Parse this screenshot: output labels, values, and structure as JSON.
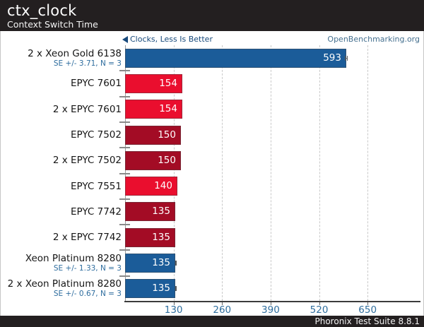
{
  "header": {
    "title": "ctx_clock",
    "subtitle": "Context Switch Time"
  },
  "chart_meta": {
    "better_label": "Clocks, Less Is Better",
    "watermark": "OpenBenchmarking.org"
  },
  "footer": {
    "text": "Phoronix Test Suite 8.8.1"
  },
  "colors": {
    "dark_bg": "#231f20",
    "bar_blue": "#1b5c99",
    "bar_red_bright": "#ea0e2e",
    "bar_red_dark": "#a30c25",
    "better_text": "#17497b",
    "watermark_text": "#45708f",
    "tick_text": "#2e6d9d",
    "grid": "#c9c9c9"
  },
  "chart_data": {
    "type": "bar",
    "orientation": "horizontal",
    "title": "ctx_clock",
    "subtitle": "Context Switch Time",
    "unit": "Clocks",
    "better": "Less Is Better",
    "x_ticks": [
      130,
      260,
      390,
      520,
      650
    ],
    "xlim": [
      0,
      800
    ],
    "grid": "vertical-dashed",
    "legend": "none",
    "rows": [
      {
        "label": "2 x Xeon Gold 6138",
        "sub_label": "SE +/- 3.71, N = 3",
        "se": 3.71,
        "value": 593,
        "color": "#1b5c99"
      },
      {
        "label": "EPYC 7601",
        "sub_label": "",
        "se": 0,
        "value": 154,
        "color": "#ea0e2e"
      },
      {
        "label": "2 x EPYC 7601",
        "sub_label": "",
        "se": 0,
        "value": 154,
        "color": "#ea0e2e"
      },
      {
        "label": "EPYC 7502",
        "sub_label": "",
        "se": 0,
        "value": 150,
        "color": "#a30c25"
      },
      {
        "label": "2 x EPYC 7502",
        "sub_label": "",
        "se": 0,
        "value": 150,
        "color": "#a30c25"
      },
      {
        "label": "EPYC 7551",
        "sub_label": "",
        "se": 0,
        "value": 140,
        "color": "#ea0e2e"
      },
      {
        "label": "EPYC 7742",
        "sub_label": "",
        "se": 0,
        "value": 135,
        "color": "#a30c25"
      },
      {
        "label": "2 x EPYC 7742",
        "sub_label": "",
        "se": 0,
        "value": 135,
        "color": "#a30c25"
      },
      {
        "label": "Xeon Platinum 8280",
        "sub_label": "SE +/- 1.33, N = 3",
        "se": 1.33,
        "value": 135,
        "color": "#1b5c99"
      },
      {
        "label": "2 x Xeon Platinum 8280",
        "sub_label": "SE +/- 0.67, N = 3",
        "se": 0.67,
        "value": 135,
        "color": "#1b5c99"
      }
    ]
  }
}
